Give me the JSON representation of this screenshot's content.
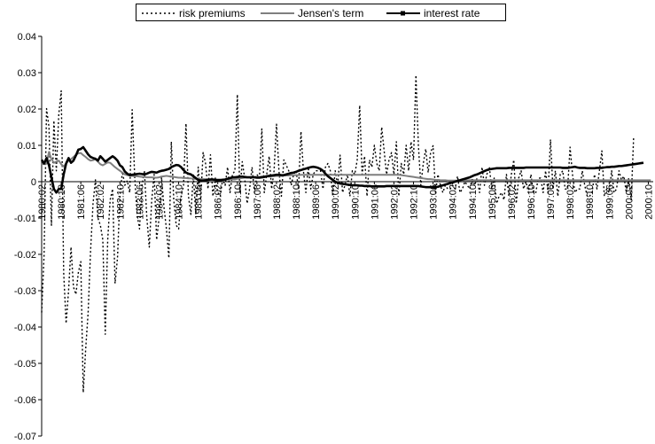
{
  "chart_data": {
    "type": "line",
    "title": "",
    "xlabel": "",
    "ylabel": "",
    "ylim": [
      -0.07,
      0.04
    ],
    "yticks": [
      "0.04",
      "0.03",
      "0.02",
      "0.01",
      "0",
      "-0.01",
      "-0.02",
      "-0.03",
      "-0.04",
      "-0.05",
      "-0.06",
      "-0.07"
    ],
    "xtick_labels": [
      "1980:02",
      "1980:10",
      "1981:06",
      "1982:02",
      "1982:10",
      "1983:06",
      "1984:02",
      "1984:10",
      "1985:06",
      "1986:02",
      "1986:10",
      "1987:06",
      "1988:02",
      "1988:10",
      "1989:06",
      "1990:02",
      "1990:10",
      "1991:06",
      "1992:02",
      "1992:10",
      "1993:06",
      "1994:02",
      "1994:10",
      "1995:06",
      "1996:02",
      "1996:10",
      "1997:06",
      "1998:02",
      "1998:10",
      "1999:06",
      "2000:02",
      "2000:10"
    ],
    "legend_position": "top",
    "grid": false,
    "months": [
      "1980:02",
      "1980:03",
      "1980:04",
      "1980:05",
      "1980:06",
      "1980:07",
      "1980:08",
      "1980:09",
      "1980:10",
      "1980:11",
      "1980:12",
      "1981:01",
      "1981:02",
      "1981:03",
      "1981:04",
      "1981:05",
      "1981:06",
      "1981:07",
      "1981:08",
      "1981:09",
      "1981:10",
      "1981:11",
      "1981:12",
      "1982:01",
      "1982:02",
      "1982:03",
      "1982:04",
      "1982:05",
      "1982:06",
      "1982:07",
      "1982:08",
      "1982:09",
      "1982:10",
      "1982:11",
      "1982:12",
      "1983:01",
      "1983:02",
      "1983:03",
      "1983:04",
      "1983:05",
      "1983:06",
      "1983:07",
      "1983:08",
      "1983:09",
      "1983:10",
      "1983:11",
      "1983:12",
      "1984:01",
      "1984:02",
      "1984:03",
      "1984:04",
      "1984:05",
      "1984:06",
      "1984:07",
      "1984:08",
      "1984:09",
      "1984:10",
      "1984:11",
      "1984:12",
      "1985:01",
      "1985:02",
      "1985:03",
      "1985:04",
      "1985:05",
      "1985:06",
      "1985:07",
      "1985:08",
      "1985:09",
      "1985:10",
      "1985:11",
      "1985:12",
      "1986:01",
      "1986:02",
      "1986:03",
      "1986:04",
      "1986:05",
      "1986:06",
      "1986:07",
      "1986:08",
      "1986:09",
      "1986:10",
      "1986:11",
      "1986:12",
      "1987:01",
      "1987:02",
      "1987:03",
      "1987:04",
      "1987:05",
      "1987:06",
      "1987:07",
      "1987:08",
      "1987:09",
      "1987:10",
      "1987:11",
      "1987:12",
      "1988:01",
      "1988:02",
      "1988:03",
      "1988:04",
      "1988:05",
      "1988:06",
      "1988:07",
      "1988:08",
      "1988:09",
      "1988:10",
      "1988:11",
      "1988:12",
      "1989:01",
      "1989:02",
      "1989:03",
      "1989:04",
      "1989:05",
      "1989:06",
      "1989:07",
      "1989:08",
      "1989:09",
      "1989:10",
      "1989:11",
      "1989:12",
      "1990:01",
      "1990:02",
      "1990:03",
      "1990:04",
      "1990:05",
      "1990:06",
      "1990:07",
      "1990:08",
      "1990:09",
      "1990:10",
      "1990:11",
      "1990:12",
      "1991:01",
      "1991:02",
      "1991:03",
      "1991:04",
      "1991:05",
      "1991:06",
      "1991:07",
      "1991:08",
      "1991:09",
      "1991:10",
      "1991:11",
      "1991:12",
      "1992:01",
      "1992:02",
      "1992:03",
      "1992:04",
      "1992:05",
      "1992:06",
      "1992:07",
      "1992:08",
      "1992:09",
      "1992:10",
      "1992:11",
      "1992:12",
      "1993:01",
      "1993:02",
      "1993:03",
      "1993:04",
      "1993:05",
      "1993:06",
      "1993:07",
      "1993:08",
      "1993:09",
      "1993:10",
      "1993:11",
      "1993:12",
      "1994:01",
      "1994:02",
      "1994:03",
      "1994:04",
      "1994:05",
      "1994:06",
      "1994:07",
      "1994:08",
      "1994:09",
      "1994:10",
      "1994:11",
      "1994:12",
      "1995:01",
      "1995:02",
      "1995:03",
      "1995:04",
      "1995:05",
      "1995:06",
      "1995:07",
      "1995:08",
      "1995:09",
      "1995:10",
      "1995:11",
      "1995:12",
      "1996:01",
      "1996:02",
      "1996:03",
      "1996:04",
      "1996:05",
      "1996:06",
      "1996:07",
      "1996:08",
      "1996:09",
      "1996:10",
      "1996:11",
      "1996:12",
      "1997:01",
      "1997:02",
      "1997:03",
      "1997:04",
      "1997:05",
      "1997:06",
      "1997:07",
      "1997:08",
      "1997:09",
      "1997:10",
      "1997:11",
      "1997:12",
      "1998:01",
      "1998:02",
      "1998:03",
      "1998:04",
      "1998:05",
      "1998:06",
      "1998:07",
      "1998:08",
      "1998:09",
      "1998:10",
      "1998:11",
      "1998:12",
      "1999:01",
      "1999:02",
      "1999:03",
      "1999:04",
      "1999:05",
      "1999:06",
      "1999:07",
      "1999:08",
      "1999:09",
      "1999:10",
      "1999:11",
      "1999:12",
      "2000:01",
      "2000:02",
      "2000:03",
      "2000:04",
      "2000:05",
      "2000:06",
      "2000:07",
      "2000:08",
      "2000:09",
      "2000:10",
      "2000:11",
      "2000:12"
    ],
    "series": [
      {
        "name": "risk premiums",
        "style": "dotted",
        "color": "#000000",
        "values": [
          -0.036,
          -0.02,
          0.0201,
          0.015,
          -0.012,
          0.0168,
          0.003,
          0.0185,
          0.025,
          -0.025,
          -0.039,
          -0.03,
          -0.018,
          -0.029,
          -0.031,
          -0.025,
          -0.022,
          -0.058,
          -0.046,
          -0.036,
          -0.019,
          -0.006,
          0.0005,
          -0.01,
          -0.012,
          -0.016,
          -0.042,
          -0.016,
          -0.005,
          -0.002,
          -0.028,
          -0.021,
          -0.004,
          0.0028,
          -0.001,
          0.0003,
          -0.003,
          0.0198,
          0.0018,
          -0.009,
          -0.013,
          -0.001,
          0.003,
          -0.01,
          -0.018,
          -0.005,
          0.002,
          -0.016,
          -0.01,
          0.0012,
          -0.007,
          -0.013,
          -0.021,
          0.011,
          -0.005,
          -0.012,
          -0.013,
          -0.004,
          -0.001,
          0.016,
          -0.004,
          -0.009,
          0.002,
          -0.009,
          0.004,
          -0.005,
          0.008,
          0.005,
          -0.002,
          0.0074,
          -0.004,
          0.001,
          -0.003,
          -0.004,
          0.0007,
          -0.001,
          0.004,
          -0.003,
          0.002,
          0.003,
          0.024,
          -0.003,
          0.0055,
          0.001,
          -0.006,
          -0.002,
          0.004,
          -0.003,
          0.002,
          0.001,
          0.0145,
          -0.003,
          0.002,
          0.007,
          -0.002,
          0.003,
          0.0158,
          0.003,
          -0.004,
          0.006,
          0.0045,
          0.003,
          -0.001,
          0.002,
          0.003,
          -0.002,
          0.0138,
          0.003,
          -0.003,
          0.004,
          -0.002,
          0.002,
          0.003,
          0.003,
          0.003,
          -0.002,
          0.004,
          0.005,
          0.003,
          -0.004,
          0.003,
          -0.001,
          0.0073,
          -0.003,
          -0.001,
          0.002,
          -0.004,
          0.003,
          0.002,
          0.006,
          0.021,
          0.002,
          0.007,
          -0.004,
          0.006,
          0.004,
          0.01,
          0.005,
          0.003,
          0.015,
          0.0085,
          0.002,
          0.006,
          0.008,
          0.002,
          0.011,
          -0.004,
          0.005,
          0.002,
          0.01,
          0.003,
          0.011,
          0.006,
          0.0293,
          0.01,
          -0.001,
          0.005,
          0.009,
          0.0025,
          0.008,
          0.0099,
          -0.003,
          0.002,
          -0.001,
          -0.003,
          -0.001,
          -0.002,
          -0.002,
          -0.001,
          -0.002,
          0.0015,
          -0.003,
          -0.002,
          0.0,
          -0.001,
          -0.002,
          0.001,
          -0.001,
          0.001,
          -0.003,
          0.004,
          -0.001,
          0.002,
          0.004,
          -0.002,
          0.001,
          -0.006,
          -0.004,
          -0.003,
          -0.005,
          0.002,
          -0.004,
          0.002,
          0.006,
          -0.006,
          0.001,
          0.003,
          -0.002,
          0.0,
          -0.003,
          0.002,
          -0.003,
          -0.003,
          0.001,
          0.001,
          -0.003,
          0.003,
          -0.003,
          0.0116,
          -0.002,
          0.003,
          -0.004,
          0.002,
          0.003,
          -0.002,
          -0.002,
          0.0095,
          0.002,
          -0.003,
          -0.002,
          -0.002,
          0.003,
          -0.001,
          -0.004,
          -0.004,
          -0.003,
          0.002,
          -0.002,
          0.003,
          0.0085,
          -0.004,
          -0.002,
          -0.003,
          0.003,
          -0.003,
          -0.002,
          0.003,
          0.0005,
          0.0015,
          -0.003,
          0.001,
          -0.005,
          0.0125
        ]
      },
      {
        "name": "Jensen's term",
        "style": "solid",
        "color": "#7f7f7f",
        "values": [
          0.005,
          0.0048,
          0.005,
          0.0082,
          0.0062,
          0.0052,
          0.0055,
          0.0058,
          0.0048,
          0.0042,
          0.005,
          0.0058,
          0.0062,
          0.0068,
          0.0074,
          0.0078,
          0.0079,
          0.0073,
          0.0068,
          0.0062,
          0.0058,
          0.0059,
          0.0062,
          0.0055,
          0.0048,
          0.0045,
          0.0049,
          0.0053,
          0.0052,
          0.0046,
          0.004,
          0.0035,
          0.003,
          0.0025,
          0.002,
          0.0018,
          0.0017,
          0.0016,
          0.0015,
          0.0015,
          0.0014,
          0.0013,
          0.0013,
          0.0012,
          0.0012,
          0.0012,
          0.0011,
          0.0011,
          0.0012,
          0.0014,
          0.0015,
          0.0016,
          0.0015,
          0.0014,
          0.0013,
          0.0012,
          0.0011,
          0.0011,
          0.001,
          0.001,
          0.0009,
          0.0009,
          0.0008,
          0.0008,
          0.0008,
          0.0007,
          0.0007,
          0.0007,
          0.0006,
          0.0006,
          0.0006,
          0.0006,
          0.0006,
          0.0006,
          0.0006,
          0.0006,
          0.0006,
          0.0006,
          0.0006,
          0.0006,
          0.0008,
          0.0009,
          0.001,
          0.0011,
          0.0012,
          0.0012,
          0.0013,
          0.0013,
          0.0013,
          0.0013,
          0.0014,
          0.0014,
          0.0014,
          0.0014,
          0.0015,
          0.0015,
          0.0016,
          0.0016,
          0.0016,
          0.0017,
          0.0017,
          0.0017,
          0.0018,
          0.0018,
          0.0018,
          0.0018,
          0.0019,
          0.0019,
          0.0019,
          0.0019,
          0.0019,
          0.0019,
          0.0019,
          0.0019,
          0.0019,
          0.0019,
          0.0019,
          0.0019,
          0.0019,
          0.0019,
          0.0019,
          0.0019,
          0.0019,
          0.0019,
          0.0019,
          0.0019,
          0.0019,
          0.0019,
          0.0019,
          0.0019,
          0.0019,
          0.0019,
          0.0019,
          0.0019,
          0.0019,
          0.0019,
          0.0019,
          0.0019,
          0.0019,
          0.0019,
          0.0019,
          0.0019,
          0.0019,
          0.0019,
          0.0019,
          0.0019,
          0.0019,
          0.0018,
          0.0017,
          0.0016,
          0.0015,
          0.0014,
          0.0013,
          0.0012,
          0.0011,
          0.001,
          0.0009,
          0.0008,
          0.0007,
          0.0007,
          0.0006,
          0.0005,
          0.0005,
          0.0004,
          0.0004,
          0.0004,
          0.0003,
          0.0003,
          0.0003,
          0.0003,
          0.0003,
          0.0003,
          0.0003,
          0.0004,
          0.0004,
          0.0004,
          0.0004,
          0.0004,
          0.0004,
          0.0004,
          0.0004,
          0.0004,
          0.0004,
          0.0004,
          0.0004,
          0.0004,
          0.0004,
          0.0004,
          0.0004,
          0.0004,
          0.0004,
          0.0004,
          0.0004,
          0.0004,
          0.0004,
          0.0004,
          0.0004,
          0.0004,
          0.0004,
          0.0004,
          0.0004,
          0.0004,
          0.0004,
          0.0004,
          0.0004,
          0.0004,
          0.0004,
          0.0004,
          0.0004,
          0.0004,
          0.0004,
          0.0004,
          0.0004,
          0.0004,
          0.0004,
          0.0004,
          0.0004,
          0.0004,
          0.0004,
          0.0004,
          0.0004,
          0.0004,
          0.0004,
          0.0004,
          0.0004,
          0.0004,
          0.0004,
          0.0004,
          0.0004,
          0.0004,
          0.0004,
          0.0004,
          0.0004,
          0.0004,
          0.0004,
          0.0004,
          0.0004,
          0.0004,
          0.0004,
          0.0004,
          0.0004,
          0.0004,
          0.0004,
          0.0004,
          0.0004,
          0.0004,
          0.0004,
          0.0004,
          0.0004,
          0.0004
        ]
      },
      {
        "name": "interest rate",
        "style": "solid-marker",
        "color": "#000000",
        "values": [
          0.006,
          0.005,
          0.0065,
          0.0045,
          0.0012,
          -0.002,
          -0.003,
          -0.002,
          -0.002,
          0.002,
          0.005,
          0.0065,
          0.0052,
          0.0058,
          0.0072,
          0.0088,
          0.009,
          0.0095,
          0.0085,
          0.0075,
          0.0068,
          0.0065,
          0.0063,
          0.0058,
          0.007,
          0.0063,
          0.0055,
          0.006,
          0.0065,
          0.007,
          0.0065,
          0.0058,
          0.0045,
          0.004,
          0.0028,
          0.0022,
          0.0018,
          0.0019,
          0.002,
          0.0021,
          0.0022,
          0.0021,
          0.002,
          0.0022,
          0.0025,
          0.0027,
          0.0026,
          0.0025,
          0.0028,
          0.003,
          0.0031,
          0.0033,
          0.0035,
          0.004,
          0.0043,
          0.0046,
          0.0045,
          0.004,
          0.0032,
          0.0025,
          0.0022,
          0.002,
          0.0015,
          0.001,
          0.0005,
          0.0003,
          0.0003,
          0.0004,
          0.0005,
          0.0006,
          0.0006,
          0.0005,
          0.0004,
          0.0004,
          0.0005,
          0.0006,
          0.0008,
          0.001,
          0.0012,
          0.0012,
          0.0013,
          0.0014,
          0.0014,
          0.0013,
          0.0012,
          0.0012,
          0.0012,
          0.0012,
          0.0011,
          0.0011,
          0.0012,
          0.0013,
          0.0015,
          0.0016,
          0.0017,
          0.0018,
          0.0019,
          0.0019,
          0.0018,
          0.0018,
          0.002,
          0.0022,
          0.0024,
          0.0025,
          0.0027,
          0.003,
          0.0032,
          0.0034,
          0.0036,
          0.0038,
          0.004,
          0.0041,
          0.004,
          0.0038,
          0.0035,
          0.003,
          0.0022,
          0.0015,
          0.001,
          0.0005,
          0.0,
          -0.0003,
          -0.0005,
          -0.0006,
          -0.0007,
          -0.0008,
          -0.0009,
          -0.001,
          -0.001,
          -0.001,
          -0.0011,
          -0.0011,
          -0.0012,
          -0.0012,
          -0.0012,
          -0.0013,
          -0.0013,
          -0.0013,
          -0.0013,
          -0.0013,
          -0.0013,
          -0.0012,
          -0.0012,
          -0.0012,
          -0.0012,
          -0.0012,
          -0.0012,
          -0.0012,
          -0.0012,
          -0.0012,
          -0.0012,
          -0.0012,
          -0.0012,
          -0.0012,
          -0.0012,
          -0.0013,
          -0.0014,
          -0.0015,
          -0.0015,
          -0.0015,
          -0.0015,
          -0.0015,
          -0.0014,
          -0.0012,
          -0.001,
          -0.0008,
          -0.0006,
          -0.0004,
          -0.0002,
          0.0,
          0.0002,
          0.0004,
          0.0006,
          0.0008,
          0.001,
          0.0012,
          0.0015,
          0.0018,
          0.002,
          0.0023,
          0.0026,
          0.0029,
          0.0032,
          0.0034,
          0.0035,
          0.0036,
          0.0037,
          0.0037,
          0.0037,
          0.0037,
          0.0037,
          0.0038,
          0.0038,
          0.0038,
          0.0038,
          0.0038,
          0.0038,
          0.0038,
          0.0039,
          0.0039,
          0.0039,
          0.0039,
          0.0039,
          0.0039,
          0.0039,
          0.0039,
          0.0039,
          0.0039,
          0.0039,
          0.0039,
          0.0039,
          0.0039,
          0.0039,
          0.0038,
          0.0038,
          0.0038,
          0.0039,
          0.004,
          0.0041,
          0.0039,
          0.0038,
          0.0038,
          0.0038,
          0.0037,
          0.0037,
          0.0037,
          0.0037,
          0.0038,
          0.0038,
          0.0038,
          0.0039,
          0.004,
          0.004,
          0.0041,
          0.0041,
          0.0042,
          0.0043,
          0.0043,
          0.0044,
          0.0045,
          0.0046,
          0.0047,
          0.0048,
          0.0049,
          0.005,
          0.0051,
          0.0052
        ]
      }
    ]
  }
}
